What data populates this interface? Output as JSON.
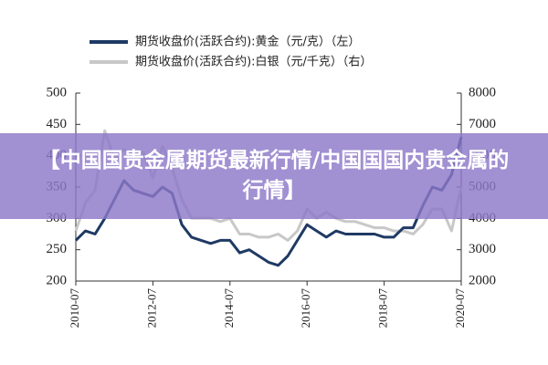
{
  "chart_data": {
    "type": "line",
    "banner": "【中国国贵金属期货最新行情/中国国国内贵金属的行情】",
    "categories": [
      "2010-07",
      null,
      null,
      null,
      null,
      null,
      null,
      null,
      "2012-07",
      null,
      null,
      null,
      null,
      null,
      null,
      null,
      "2014-07",
      null,
      null,
      null,
      null,
      null,
      null,
      null,
      "2016-07",
      null,
      null,
      null,
      null,
      null,
      null,
      null,
      "2018-07",
      null,
      null,
      null,
      null,
      null,
      null,
      null,
      "2020-07"
    ],
    "series": [
      {
        "name": "期货收盘价(活跃合约):黄金（元/克）（左）",
        "color": "#1f3a64",
        "axis": "y",
        "values": [
          265,
          280,
          275,
          300,
          330,
          360,
          345,
          340,
          335,
          350,
          340,
          290,
          270,
          265,
          260,
          265,
          265,
          245,
          250,
          240,
          230,
          225,
          240,
          265,
          290,
          280,
          270,
          280,
          275,
          275,
          275,
          275,
          270,
          270,
          285,
          285,
          320,
          350,
          345,
          370,
          430
        ]
      },
      {
        "name": "期货收盘价(活跃合约):白银（元/千克）（右）",
        "color": "#c8c8c8",
        "axis": "y2",
        "values": [
          3600,
          4500,
          4900,
          6800,
          5900,
          6200,
          6000,
          6100,
          5300,
          6300,
          5600,
          4600,
          4000,
          4000,
          4000,
          3900,
          4000,
          3500,
          3500,
          3400,
          3400,
          3500,
          3300,
          3600,
          4300,
          4000,
          4200,
          4000,
          3900,
          3900,
          3800,
          3700,
          3700,
          3600,
          3600,
          3500,
          3800,
          4300,
          4300,
          3600,
          5000
        ]
      }
    ],
    "ylim": [
      200,
      500
    ],
    "yticks": [
      200,
      250,
      300,
      350,
      400,
      450,
      500
    ],
    "y2lim": [
      2000,
      8000
    ],
    "y2ticks": [
      2000,
      3000,
      4000,
      5000,
      6000,
      7000,
      8000
    ]
  }
}
